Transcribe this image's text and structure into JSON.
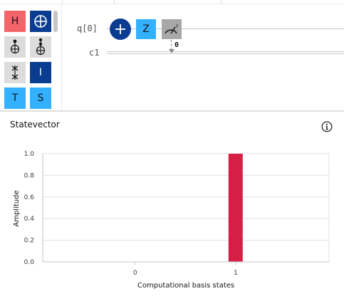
{
  "palette": {
    "gates": [
      {
        "name": "h-gate",
        "label": "H",
        "style": "red"
      },
      {
        "name": "cnot-gate",
        "label": "",
        "icon": "oplus-icon",
        "style": "navy"
      },
      {
        "name": "toffoli-gate",
        "label": "",
        "icon": "toffoli-icon",
        "style": "grey"
      },
      {
        "name": "toffoli-gate-2",
        "label": "",
        "icon": "toffoli-icon",
        "style": "grey"
      },
      {
        "name": "swap-gate",
        "label": "",
        "icon": "swap-icon",
        "style": "grey"
      },
      {
        "name": "identity-gate",
        "label": "I",
        "style": "navy"
      },
      {
        "name": "t-gate",
        "label": "T",
        "style": "cyan"
      },
      {
        "name": "s-gate",
        "label": "S",
        "style": "cyan"
      }
    ]
  },
  "circuit": {
    "qubit_label": "q[0]",
    "classical_label": "c1",
    "operations": [
      {
        "type": "x",
        "icon": "plus-icon"
      },
      {
        "type": "z",
        "label": "Z"
      },
      {
        "type": "measure",
        "icon": "measure-icon",
        "bit": "0"
      }
    ]
  },
  "statevector": {
    "title": "Statevector",
    "info_icon": "info-icon"
  },
  "chart_data": {
    "type": "bar",
    "categories": [
      "0",
      "1"
    ],
    "values": [
      0.0,
      1.0
    ],
    "xlabel": "Computational basis states",
    "ylabel": "Amplitude",
    "ylim": [
      0,
      1
    ],
    "yticks": [
      0.0,
      0.2,
      0.4,
      0.6,
      0.8,
      1.0
    ],
    "ytick_labels": [
      "0.0",
      "0.2",
      "0.4",
      "0.6",
      "0.8",
      "1.0"
    ],
    "grid": true,
    "bar_color": "#d61f45"
  },
  "colors": {
    "navy": "#0a3d91",
    "cyan": "#33b1ff",
    "red_gate": "#f3656b",
    "measure_grey": "#a8a8a8"
  }
}
